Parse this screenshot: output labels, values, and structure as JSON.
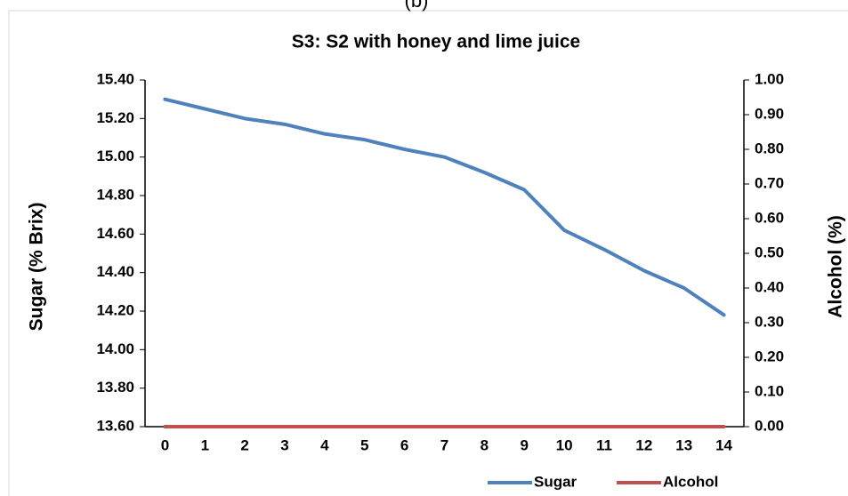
{
  "panel_label": "(b)",
  "chart_data": {
    "type": "line",
    "title": "S3: S2 with honey and lime juice",
    "y_label": "Sugar (% Brix)",
    "y2_label": "Alcohol (%)",
    "categories": [
      "0",
      "1",
      "2",
      "3",
      "4",
      "5",
      "6",
      "7",
      "8",
      "9",
      "10",
      "11",
      "12",
      "13",
      "14"
    ],
    "series": [
      {
        "name": "Sugar",
        "color": "#4f81bd",
        "axis": "y",
        "values": [
          15.3,
          15.25,
          15.2,
          15.17,
          15.12,
          15.09,
          15.04,
          15.0,
          14.92,
          14.83,
          14.62,
          14.52,
          14.41,
          14.32,
          14.18
        ]
      },
      {
        "name": "Alcohol",
        "color": "#c0504d",
        "axis": "y2",
        "values": [
          0,
          0,
          0,
          0,
          0,
          0,
          0,
          0,
          0,
          0,
          0,
          0,
          0,
          0,
          0
        ]
      }
    ],
    "ylim": [
      13.6,
      15.4
    ],
    "yticks": [
      {
        "value": 13.6,
        "label": "13.60"
      },
      {
        "value": 13.8,
        "label": "13.80"
      },
      {
        "value": 14.0,
        "label": "14.00"
      },
      {
        "value": 14.2,
        "label": "14.20"
      },
      {
        "value": 14.4,
        "label": "14.40"
      },
      {
        "value": 14.6,
        "label": "14.60"
      },
      {
        "value": 14.8,
        "label": "14.80"
      },
      {
        "value": 15.0,
        "label": "15.00"
      },
      {
        "value": 15.2,
        "label": "15.20"
      },
      {
        "value": 15.4,
        "label": "15.40"
      }
    ],
    "y2lim": [
      0,
      1
    ],
    "y2ticks": [
      {
        "value": 0,
        "label": "0.00"
      },
      {
        "value": 0.1,
        "label": "0.10"
      },
      {
        "value": 0.2,
        "label": "0.20"
      },
      {
        "value": 0.3,
        "label": "0.30"
      },
      {
        "value": 0.4,
        "label": "0.40"
      },
      {
        "value": 0.5,
        "label": "0.50"
      },
      {
        "value": 0.6,
        "label": "0.60"
      },
      {
        "value": 0.7,
        "label": "0.70"
      },
      {
        "value": 0.8,
        "label": "0.80"
      },
      {
        "value": 0.9,
        "label": "0.90"
      },
      {
        "value": 1,
        "label": "1.00"
      }
    ],
    "legend": "bottom-right",
    "grid": false
  }
}
